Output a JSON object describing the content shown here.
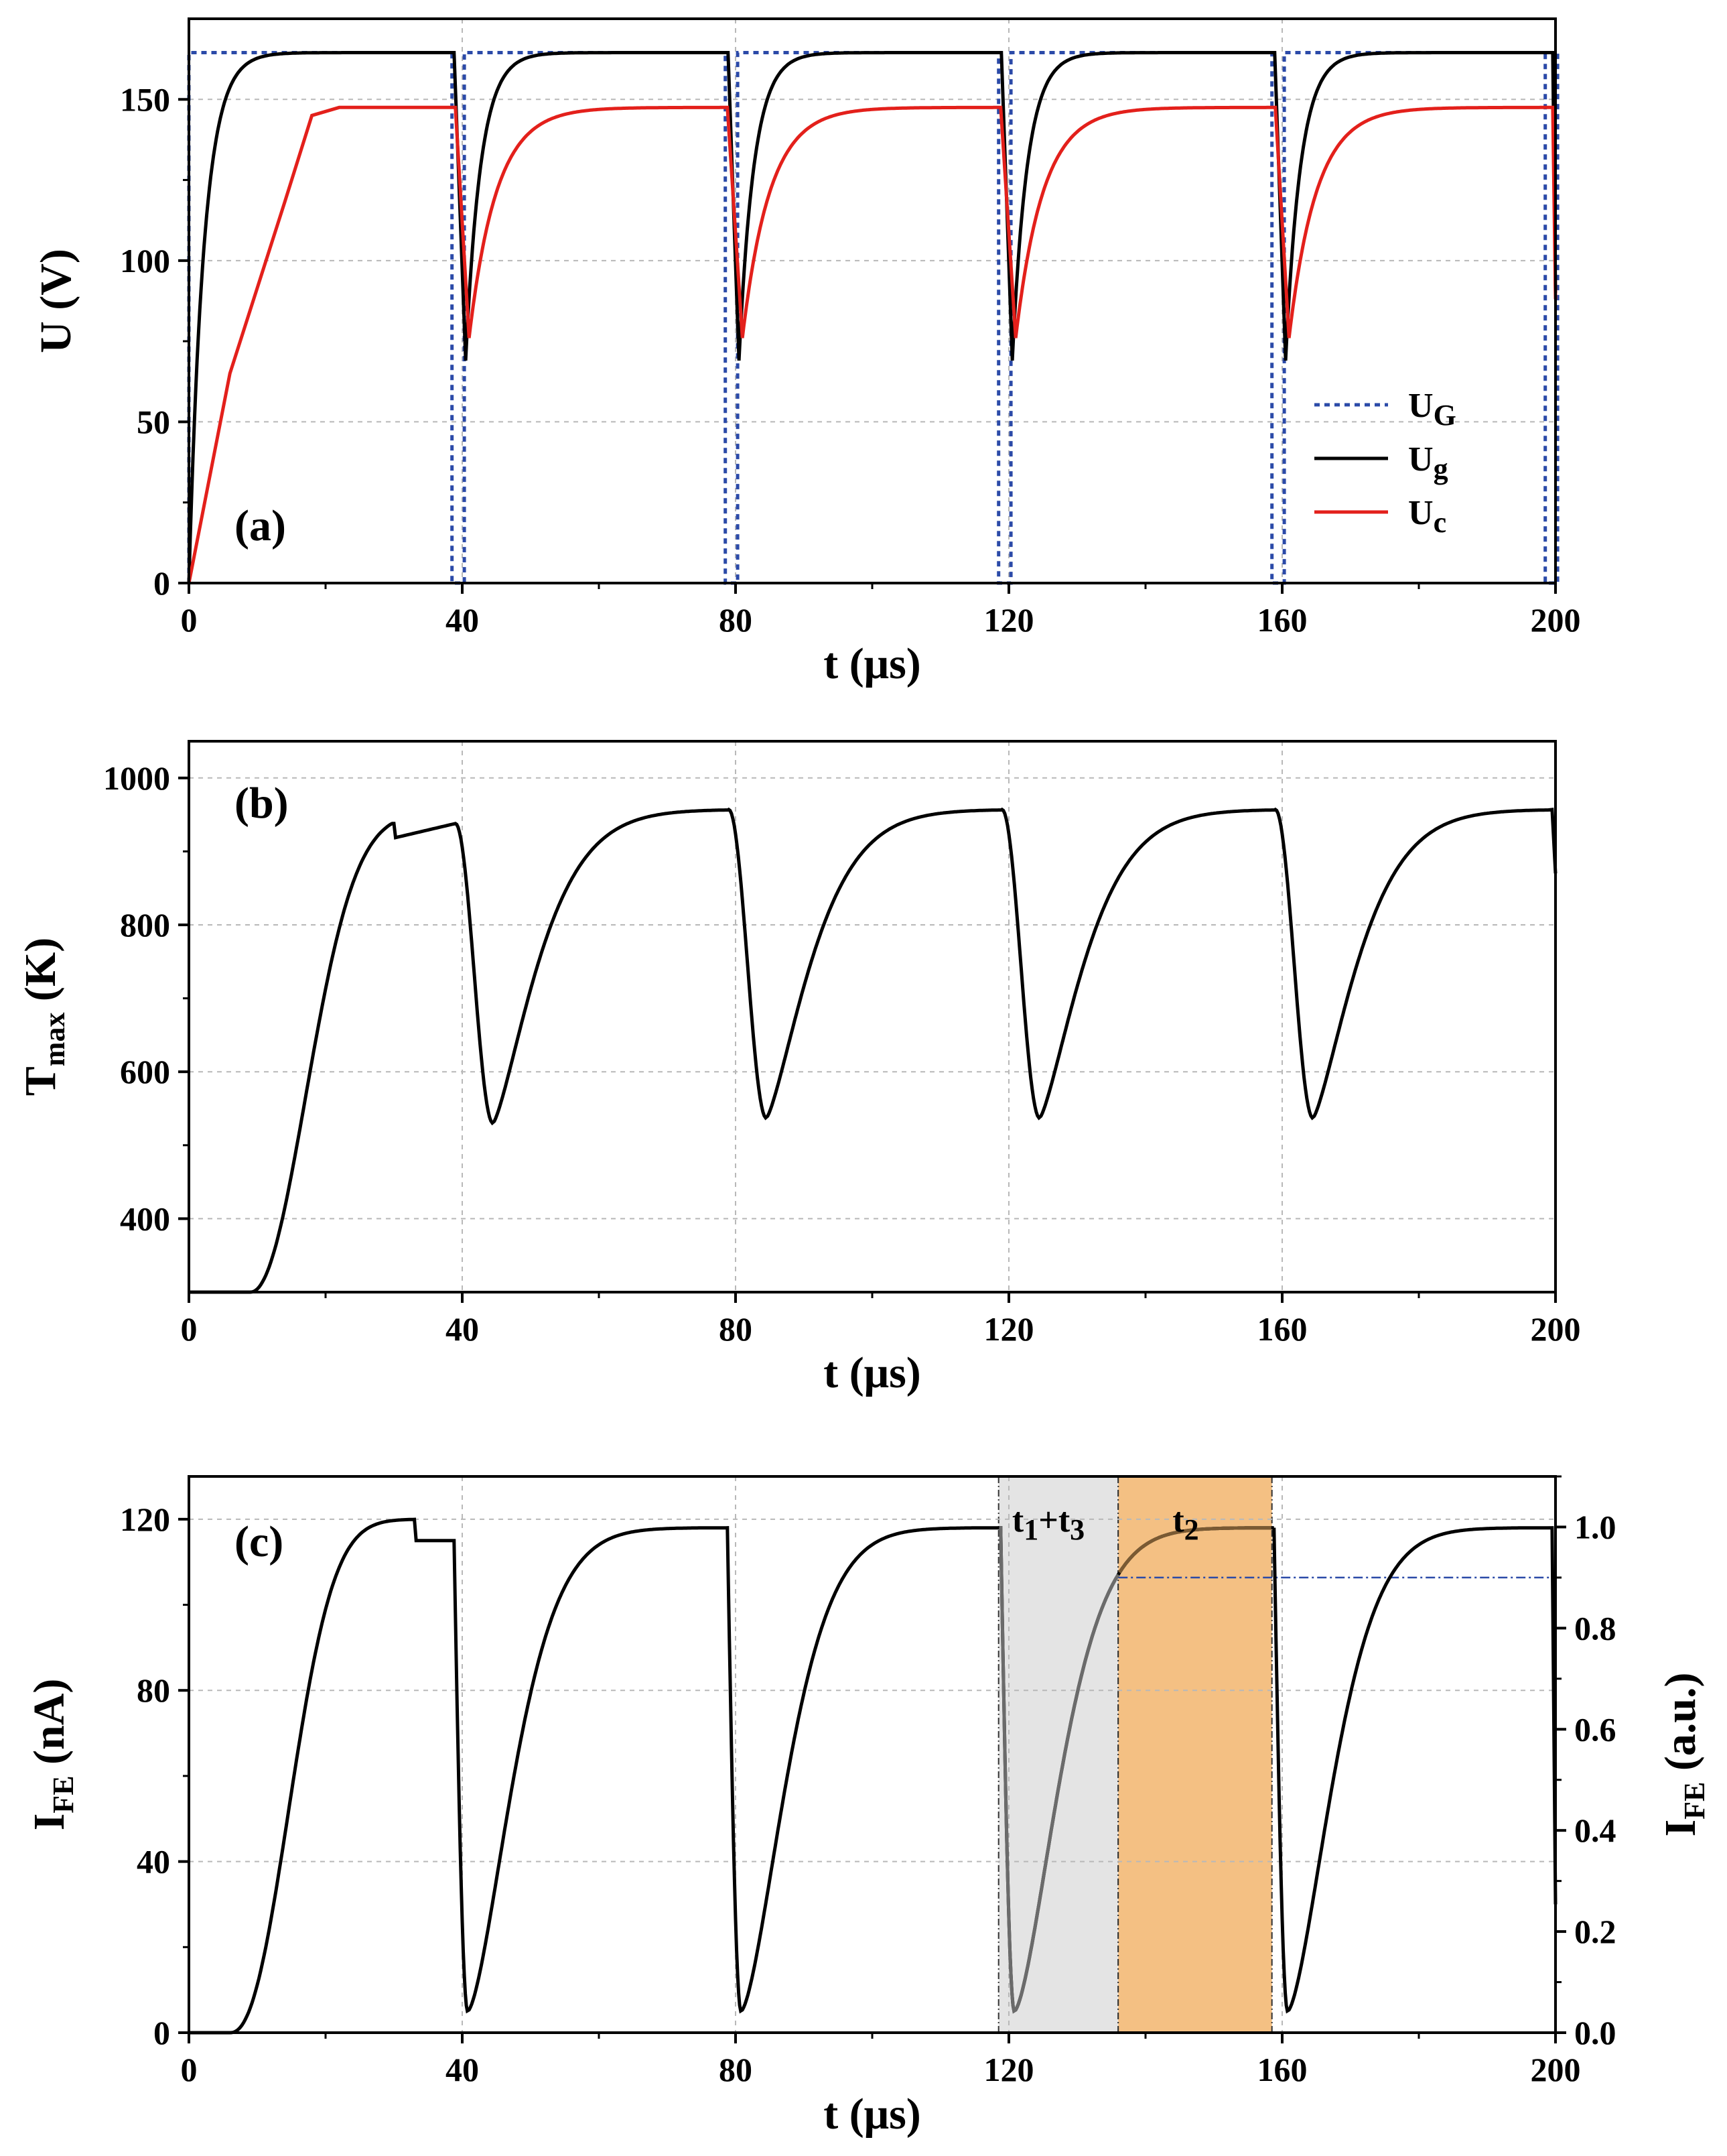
{
  "colors": {
    "UG": "#2b4aa8",
    "Ug": "#000000",
    "Uc": "#e3201b",
    "band1": "#e4e4e4",
    "band2": "#f4c083",
    "ref": "#2b4aa8"
  },
  "chart_data": [
    {
      "type": "line",
      "panel_label": "(a)",
      "xlabel": "t (μs)",
      "ylabel": "U (V)",
      "xlim": [
        0,
        200
      ],
      "ylim": [
        0,
        175
      ],
      "x_ticks": [
        "0",
        "40",
        "80",
        "120",
        "160",
        "200"
      ],
      "y_ticks": [
        "0",
        "50",
        "100",
        "150"
      ],
      "legend": {
        "placement": "bottom-right",
        "entries": [
          {
            "main": "U",
            "sub": "G"
          },
          {
            "main": "U",
            "sub": "g"
          },
          {
            "main": "U",
            "sub": "c"
          }
        ]
      },
      "series": [
        {
          "name": "UG",
          "style": "dotted",
          "period_us": 40,
          "high": 164.5,
          "low": 0,
          "drop_start_offset": 38.5,
          "rise_end_offset": 40.3
        },
        {
          "name": "Ug",
          "style": "solid",
          "first_rise_tau_us": 2.2,
          "plateau": 164.5,
          "tau_us": 2.2,
          "dip_min": 69,
          "dip_time_offset": 40.5,
          "drop_start_offset": 39.0
        },
        {
          "name": "Uc",
          "style": "solid",
          "first_rise": [
            [
              0,
              0
            ],
            [
              6,
              65
            ],
            [
              14,
              118
            ],
            [
              18,
              145
            ],
            [
              22,
              147.5
            ]
          ],
          "plateau": 147.5,
          "tau_us": 4.0,
          "dip_min": 76,
          "dip_time_offset": 41.0,
          "drop_start_offset": 39.0
        }
      ]
    },
    {
      "type": "line",
      "panel_label": "(b)",
      "xlabel": "t (μs)",
      "ylabel_main": "T",
      "ylabel_sub": "max",
      "ylabel_tail": " (K)",
      "xlim": [
        0,
        200
      ],
      "ylim": [
        300,
        1050
      ],
      "x_ticks": [
        "0",
        "40",
        "80",
        "120",
        "160",
        "200"
      ],
      "y_ticks": [
        "400",
        "600",
        "800",
        "1000"
      ],
      "series": [
        {
          "name": "Tmax",
          "base": 300,
          "first_peak": 938,
          "peak": 957,
          "min_first": 530,
          "min": 537,
          "min_time_offset": 44.5,
          "drop_start_offset": 39.0
        }
      ]
    },
    {
      "type": "line",
      "panel_label": "(c)",
      "xlabel": "t (μs)",
      "ylabel_main": "I",
      "ylabel_sub": "FE",
      "ylabel_tail": " (nA)",
      "y2label_main": "I",
      "y2label_sub": "FE",
      "y2label_tail": " (a.u.)",
      "xlim": [
        0,
        200
      ],
      "ylim": [
        0,
        130
      ],
      "y2lim": [
        0,
        1.1
      ],
      "x_ticks": [
        "0",
        "40",
        "80",
        "120",
        "160",
        "200"
      ],
      "y_ticks": [
        "0",
        "40",
        "80",
        "120"
      ],
      "y2_ticks": [
        "0.0",
        "0.2",
        "0.4",
        "0.6",
        "0.8",
        "1.0"
      ],
      "bands": [
        {
          "label_parts": [
            "t",
            "1",
            "+t",
            "3"
          ],
          "from": 118.5,
          "to": 136
        },
        {
          "label_parts": [
            "t",
            "2"
          ],
          "from": 136,
          "to": 158.5
        }
      ],
      "reference_line": {
        "y2": 0.9,
        "from": 136,
        "to": 200
      },
      "series": [
        {
          "name": "IFE",
          "first_peak": 115,
          "peak": 118,
          "min": 5,
          "min_time_offset": 40.8,
          "drop_start_offset": 38.8
        }
      ]
    }
  ]
}
